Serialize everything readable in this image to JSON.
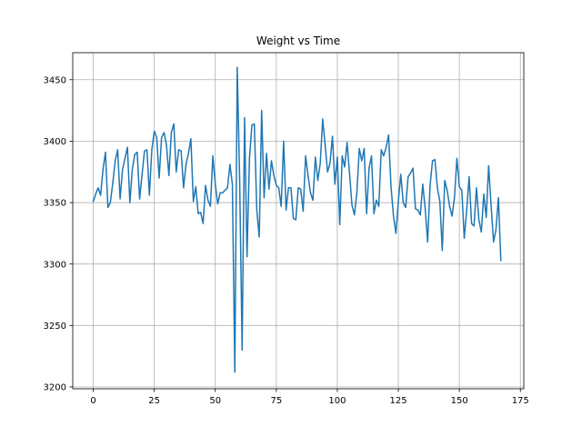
{
  "chart_data": {
    "type": "line",
    "title": "Weight vs Time",
    "xlabel": "",
    "ylabel": "",
    "xlim": [
      -8.4,
      176.4
    ],
    "ylim": [
      3198.5,
      3472
    ],
    "x_ticks": [
      0,
      25,
      50,
      75,
      100,
      125,
      150,
      175
    ],
    "y_ticks": [
      3200,
      3250,
      3300,
      3350,
      3400,
      3450
    ],
    "grid": true,
    "line_color": "#1f77b4",
    "series": [
      {
        "values": [
          3351,
          3357,
          3362,
          3356,
          3377,
          3391,
          3346,
          3350,
          3366,
          3384,
          3393,
          3353,
          3377,
          3386,
          3395,
          3350,
          3377,
          3389,
          3391,
          3353,
          3373,
          3392,
          3393,
          3356,
          3393,
          3408,
          3403,
          3370,
          3403,
          3407,
          3397,
          3372,
          3407,
          3414,
          3375,
          3393,
          3392,
          3362,
          3381,
          3390,
          3402,
          3351,
          3363,
          3341,
          3342,
          3333,
          3364,
          3352,
          3347,
          3388,
          3365,
          3349,
          3358,
          3358,
          3360,
          3362,
          3381,
          3365,
          3212,
          3460,
          3367,
          3230,
          3419,
          3306,
          3386,
          3413,
          3414,
          3344,
          3322,
          3425,
          3354,
          3390,
          3361,
          3384,
          3372,
          3364,
          3362,
          3347,
          3400,
          3344,
          3362,
          3362,
          3337,
          3336,
          3362,
          3361,
          3343,
          3388,
          3372,
          3358,
          3352,
          3387,
          3368,
          3382,
          3418,
          3397,
          3375,
          3382,
          3404,
          3365,
          3387,
          3332,
          3388,
          3379,
          3399,
          3374,
          3348,
          3340,
          3358,
          3394,
          3384,
          3394,
          3341,
          3378,
          3388,
          3341,
          3352,
          3347,
          3393,
          3388,
          3395,
          3405,
          3363,
          3339,
          3325,
          3351,
          3373,
          3350,
          3346,
          3371,
          3374,
          3378,
          3345,
          3344,
          3340,
          3365,
          3345,
          3318,
          3364,
          3384,
          3385,
          3362,
          3351,
          3311,
          3368,
          3360,
          3347,
          3339,
          3354,
          3386,
          3363,
          3360,
          3321,
          3344,
          3371,
          3333,
          3331,
          3362,
          3336,
          3326,
          3357,
          3338,
          3380,
          3348,
          3318,
          3328,
          3354,
          3303
        ]
      }
    ]
  }
}
